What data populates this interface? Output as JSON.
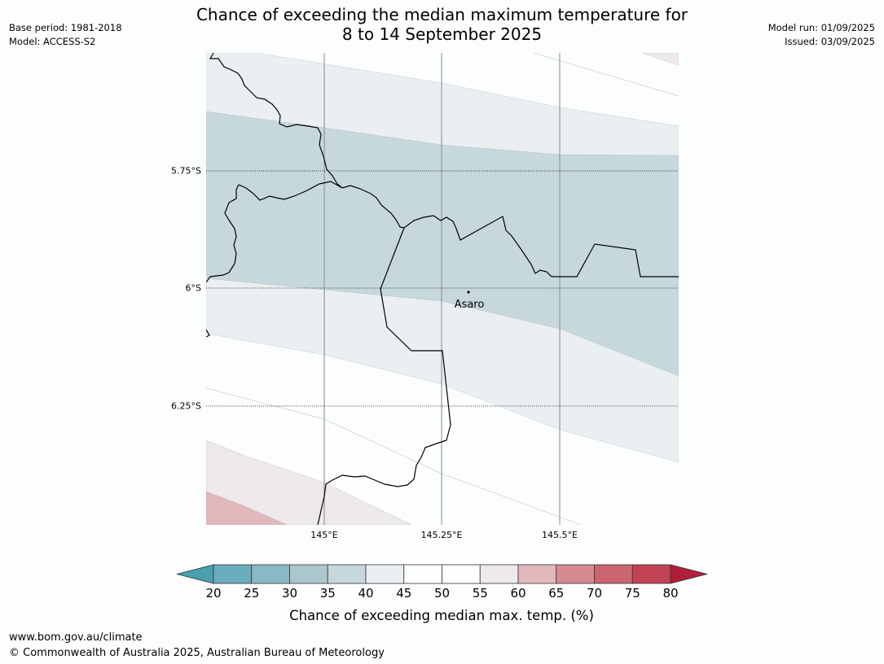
{
  "header": {
    "title_line1": "Chance of exceeding the median maximum temperature for",
    "title_line2": "8 to 14 September 2025",
    "base_period": "Base period: 1981-2018",
    "model": "Model: ACCESS-S2",
    "model_run": "Model run: 01/09/2025",
    "issued": "Issued: 03/09/2025"
  },
  "map": {
    "latitude_labels": [
      "5.75°S",
      "6°S",
      "6.25°S"
    ],
    "longitude_labels": [
      "145°E",
      "145.25°E",
      "145.5°E"
    ],
    "place_label": "Asaro"
  },
  "colorbar": {
    "ticks": [
      "20",
      "25",
      "30",
      "35",
      "40",
      "45",
      "50",
      "55",
      "60",
      "65",
      "70",
      "75",
      "80"
    ],
    "label": "Chance of exceeding median max. temp. (%)",
    "colors": {
      "below_20": "#4a9fb0",
      "20-25": "#6aadbc",
      "25-30": "#8ab9c6",
      "30-35": "#abc6cd",
      "35-40": "#c6d8dc",
      "40-45": "#eaeff1",
      "45-50": "#fcfefe",
      "50-55": "#fcfefe",
      "55-60": "#eee9ea",
      "60-65": "#e1b9bd",
      "65-70": "#d68a92",
      "70-75": "#cb6570",
      "75-80": "#c14354",
      "above_80": "#b01e3a"
    }
  },
  "footer": {
    "url": "www.bom.gov.au/climate",
    "copyright": "© Commonwealth of Australia 2025, Australian Bureau of Meteorology"
  }
}
